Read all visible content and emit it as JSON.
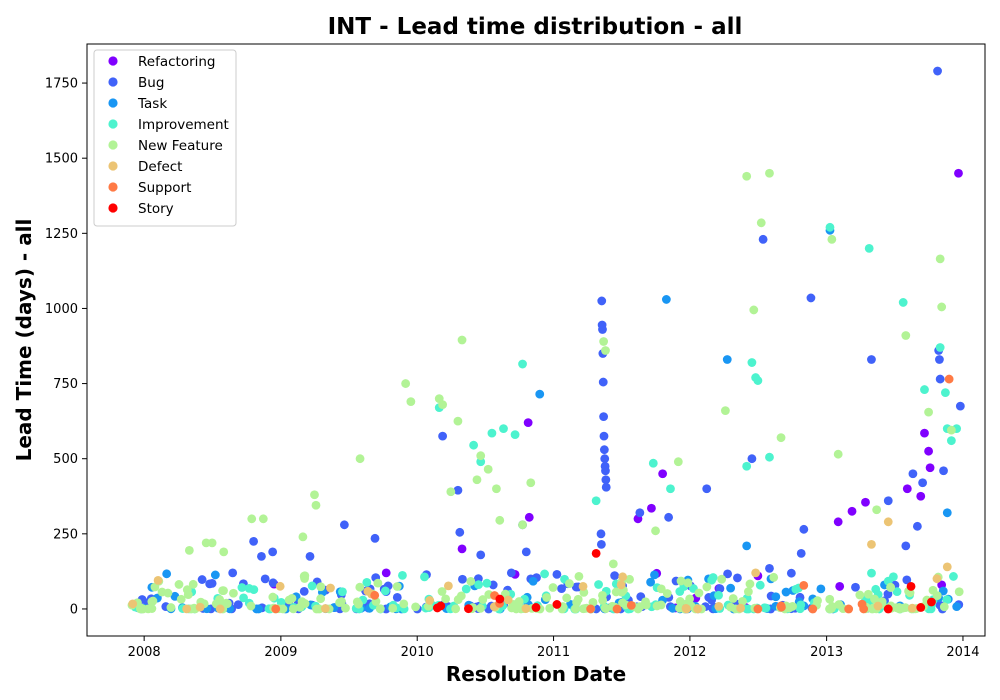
{
  "chart_data": {
    "type": "scatter",
    "title": "INT - Lead time distribution - all",
    "xlabel": "Resolution Date",
    "ylabel": "Lead Time (days) - all",
    "xlim": [
      "2007-08-01",
      "2014-03-01"
    ],
    "ylim": [
      -90,
      1880
    ],
    "x_ticks": [
      "2008",
      "2009",
      "2010",
      "2011",
      "2012",
      "2013",
      "2014"
    ],
    "y_ticks": [
      0,
      250,
      500,
      750,
      1000,
      1250,
      1500,
      1750
    ],
    "grid": false,
    "legend_position": "top-left",
    "series": [
      {
        "name": "Refactoring",
        "color": "#8000ff",
        "points": [
          [
            "2009-10-10",
            120
          ],
          [
            "2010-05-01",
            200
          ],
          [
            "2010-10-25",
            620
          ],
          [
            "2010-10-28",
            305
          ],
          [
            "2010-09-20",
            115
          ],
          [
            "2011-08-15",
            300
          ],
          [
            "2011-10-20",
            450
          ],
          [
            "2011-09-20",
            335
          ],
          [
            "2012-07-01",
            110
          ],
          [
            "2013-02-01",
            290
          ],
          [
            "2013-03-10",
            325
          ],
          [
            "2013-04-15",
            355
          ],
          [
            "2013-08-05",
            400
          ],
          [
            "2013-09-10",
            375
          ],
          [
            "2013-09-20",
            585
          ],
          [
            "2013-10-01",
            525
          ],
          [
            "2013-10-05",
            470
          ],
          [
            "2013-12-20",
            1450
          ],
          [
            "2013-02-05",
            75
          ],
          [
            "2013-11-05",
            80
          ]
        ]
      },
      {
        "name": "Bug",
        "color": "#4062f9",
        "points": [
          [
            "2008-07-01",
            85
          ],
          [
            "2008-08-25",
            120
          ],
          [
            "2008-10-20",
            225
          ],
          [
            "2008-11-10",
            175
          ],
          [
            "2008-11-20",
            100
          ],
          [
            "2008-12-10",
            190
          ],
          [
            "2009-03-20",
            175
          ],
          [
            "2009-06-20",
            280
          ],
          [
            "2009-09-10",
            235
          ],
          [
            "2010-03-10",
            575
          ],
          [
            "2010-04-20",
            395
          ],
          [
            "2010-04-25",
            255
          ],
          [
            "2010-06-20",
            180
          ],
          [
            "2010-09-10",
            120
          ],
          [
            "2010-10-10",
            280
          ],
          [
            "2010-10-20",
            190
          ],
          [
            "2010-11-01",
            100
          ],
          [
            "2011-01-10",
            115
          ],
          [
            "2011-05-10",
            1025
          ],
          [
            "2011-05-11",
            945
          ],
          [
            "2011-05-12",
            930
          ],
          [
            "2011-05-13",
            850
          ],
          [
            "2011-05-14",
            755
          ],
          [
            "2011-05-15",
            640
          ],
          [
            "2011-05-16",
            575
          ],
          [
            "2011-05-17",
            530
          ],
          [
            "2011-05-18",
            500
          ],
          [
            "2011-05-19",
            475
          ],
          [
            "2011-05-20",
            460
          ],
          [
            "2011-05-21",
            430
          ],
          [
            "2011-05-22",
            405
          ],
          [
            "2011-05-08",
            250
          ],
          [
            "2011-05-09",
            215
          ],
          [
            "2011-08-20",
            320
          ],
          [
            "2011-11-05",
            305
          ],
          [
            "2012-02-15",
            400
          ],
          [
            "2012-06-15",
            500
          ],
          [
            "2012-07-15",
            1230
          ],
          [
            "2012-08-01",
            135
          ],
          [
            "2012-11-20",
            1035
          ],
          [
            "2012-10-25",
            185
          ],
          [
            "2012-11-01",
            265
          ],
          [
            "2013-05-01",
            830
          ],
          [
            "2013-06-15",
            360
          ],
          [
            "2013-08-20",
            450
          ],
          [
            "2013-09-15",
            420
          ],
          [
            "2013-10-25",
            1790
          ],
          [
            "2013-10-28",
            860
          ],
          [
            "2013-10-30",
            830
          ],
          [
            "2013-11-01",
            765
          ],
          [
            "2013-11-10",
            460
          ],
          [
            "2013-12-25",
            675
          ],
          [
            "2013-08-01",
            210
          ],
          [
            "2013-09-01",
            275
          ]
        ]
      },
      {
        "name": "Task",
        "color": "#1996f3",
        "points": [
          [
            "2010-11-25",
            715
          ],
          [
            "2011-10-30",
            1030
          ],
          [
            "2012-02-20",
            100
          ],
          [
            "2012-04-10",
            830
          ],
          [
            "2012-06-01",
            210
          ],
          [
            "2012-08-05",
            100
          ],
          [
            "2013-01-10",
            1260
          ],
          [
            "2013-06-05",
            80
          ],
          [
            "2013-11-20",
            320
          ]
        ]
      },
      {
        "name": "Improvement",
        "color": "#4df3ce",
        "points": [
          [
            "2010-03-01",
            670
          ],
          [
            "2010-06-01",
            545
          ],
          [
            "2010-06-20",
            490
          ],
          [
            "2010-07-20",
            585
          ],
          [
            "2010-08-20",
            600
          ],
          [
            "2010-09-20",
            580
          ],
          [
            "2010-10-10",
            815
          ],
          [
            "2011-04-25",
            360
          ],
          [
            "2011-09-25",
            485
          ],
          [
            "2011-11-10",
            400
          ],
          [
            "2012-06-15",
            820
          ],
          [
            "2012-06-25",
            770
          ],
          [
            "2012-07-01",
            760
          ],
          [
            "2012-06-01",
            475
          ],
          [
            "2012-08-01",
            505
          ],
          [
            "2013-01-10",
            1270
          ],
          [
            "2013-04-25",
            1200
          ],
          [
            "2013-07-25",
            1020
          ],
          [
            "2013-09-20",
            730
          ],
          [
            "2013-11-01",
            870
          ],
          [
            "2013-11-15",
            720
          ],
          [
            "2013-11-20",
            600
          ],
          [
            "2013-12-15",
            600
          ],
          [
            "2013-12-01",
            560
          ]
        ]
      },
      {
        "name": "New Feature",
        "color": "#b2f396",
        "points": [
          [
            "2008-05-01",
            195
          ],
          [
            "2008-06-15",
            220
          ],
          [
            "2008-07-01",
            220
          ],
          [
            "2008-08-01",
            190
          ],
          [
            "2008-10-15",
            300
          ],
          [
            "2008-11-15",
            300
          ],
          [
            "2009-04-01",
            380
          ],
          [
            "2009-04-05",
            345
          ],
          [
            "2009-03-01",
            240
          ],
          [
            "2009-08-01",
            500
          ],
          [
            "2009-12-01",
            750
          ],
          [
            "2009-12-15",
            690
          ],
          [
            "2010-03-01",
            700
          ],
          [
            "2010-03-10",
            680
          ],
          [
            "2010-04-01",
            390
          ],
          [
            "2010-04-20",
            625
          ],
          [
            "2010-05-01",
            895
          ],
          [
            "2010-06-10",
            430
          ],
          [
            "2010-06-20",
            510
          ],
          [
            "2010-07-10",
            465
          ],
          [
            "2010-08-01",
            400
          ],
          [
            "2010-08-10",
            295
          ],
          [
            "2010-10-10",
            280
          ],
          [
            "2010-11-01",
            420
          ],
          [
            "2011-05-15",
            890
          ],
          [
            "2011-05-20",
            860
          ],
          [
            "2011-06-10",
            150
          ],
          [
            "2011-10-01",
            260
          ],
          [
            "2011-12-01",
            490
          ],
          [
            "2012-04-05",
            660
          ],
          [
            "2012-06-01",
            1440
          ],
          [
            "2012-06-20",
            995
          ],
          [
            "2012-07-10",
            1285
          ],
          [
            "2012-08-01",
            1450
          ],
          [
            "2012-09-01",
            570
          ],
          [
            "2013-01-15",
            1230
          ],
          [
            "2013-02-01",
            515
          ],
          [
            "2013-05-15",
            330
          ],
          [
            "2013-08-01",
            910
          ],
          [
            "2013-10-01",
            655
          ],
          [
            "2013-11-01",
            1165
          ],
          [
            "2013-11-05",
            1005
          ],
          [
            "2013-12-01",
            595
          ]
        ]
      },
      {
        "name": "Defect",
        "color": "#ecc474",
        "points": [
          [
            "2011-07-01",
            80
          ],
          [
            "2012-06-25",
            120
          ],
          [
            "2013-05-01",
            215
          ],
          [
            "2013-06-15",
            290
          ],
          [
            "2013-11-20",
            140
          ]
        ]
      },
      {
        "name": "Support",
        "color": "#ff7a45",
        "points": [
          [
            "2011-06-20",
            0
          ],
          [
            "2012-07-01",
            0
          ],
          [
            "2012-09-01",
            10
          ],
          [
            "2012-11-25",
            0
          ],
          [
            "2013-03-01",
            0
          ],
          [
            "2013-11-25",
            765
          ]
        ]
      },
      {
        "name": "Story",
        "color": "#ff0000",
        "points": [
          [
            "2010-03-05",
            10
          ],
          [
            "2010-11-15",
            5
          ],
          [
            "2011-01-10",
            15
          ],
          [
            "2011-04-25",
            185
          ],
          [
            "2013-06-15",
            0
          ],
          [
            "2013-08-15",
            75
          ],
          [
            "2013-09-10",
            5
          ]
        ]
      }
    ]
  }
}
